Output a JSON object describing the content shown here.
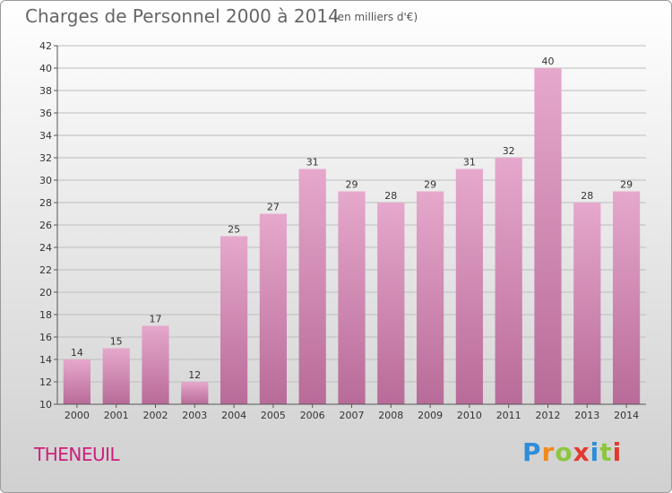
{
  "title": "Charges de Personnel 2000 à 2014",
  "subtitle": "(en milliers d'€)",
  "commune": "THENEUIL",
  "brand": {
    "letters": [
      "P",
      "r",
      "o",
      "x",
      "i",
      "t",
      "i"
    ],
    "colors": [
      "#2f8dd8",
      "#f08a1d",
      "#8cc63f",
      "#e23a2f",
      "#2f8dd8",
      "#8cc63f",
      "#e23a2f"
    ]
  },
  "colors": {
    "bar_top": "#e6a8cc",
    "bar_bottom": "#b86b98",
    "grid": "#bdbdbd",
    "axis_text": "#333333"
  },
  "chart_data": {
    "type": "bar",
    "categories": [
      "2000",
      "2001",
      "2002",
      "2003",
      "2004",
      "2005",
      "2006",
      "2007",
      "2008",
      "2009",
      "2010",
      "2011",
      "2012",
      "2013",
      "2014"
    ],
    "values": [
      14,
      15,
      17,
      12,
      25,
      27,
      31,
      29,
      28,
      29,
      31,
      32,
      40,
      28,
      29
    ],
    "ylim": [
      10,
      42
    ],
    "yticks": [
      10,
      12,
      14,
      16,
      18,
      20,
      22,
      24,
      26,
      28,
      30,
      32,
      34,
      36,
      38,
      40,
      42
    ],
    "grid": true,
    "xlabel": "",
    "ylabel": ""
  }
}
